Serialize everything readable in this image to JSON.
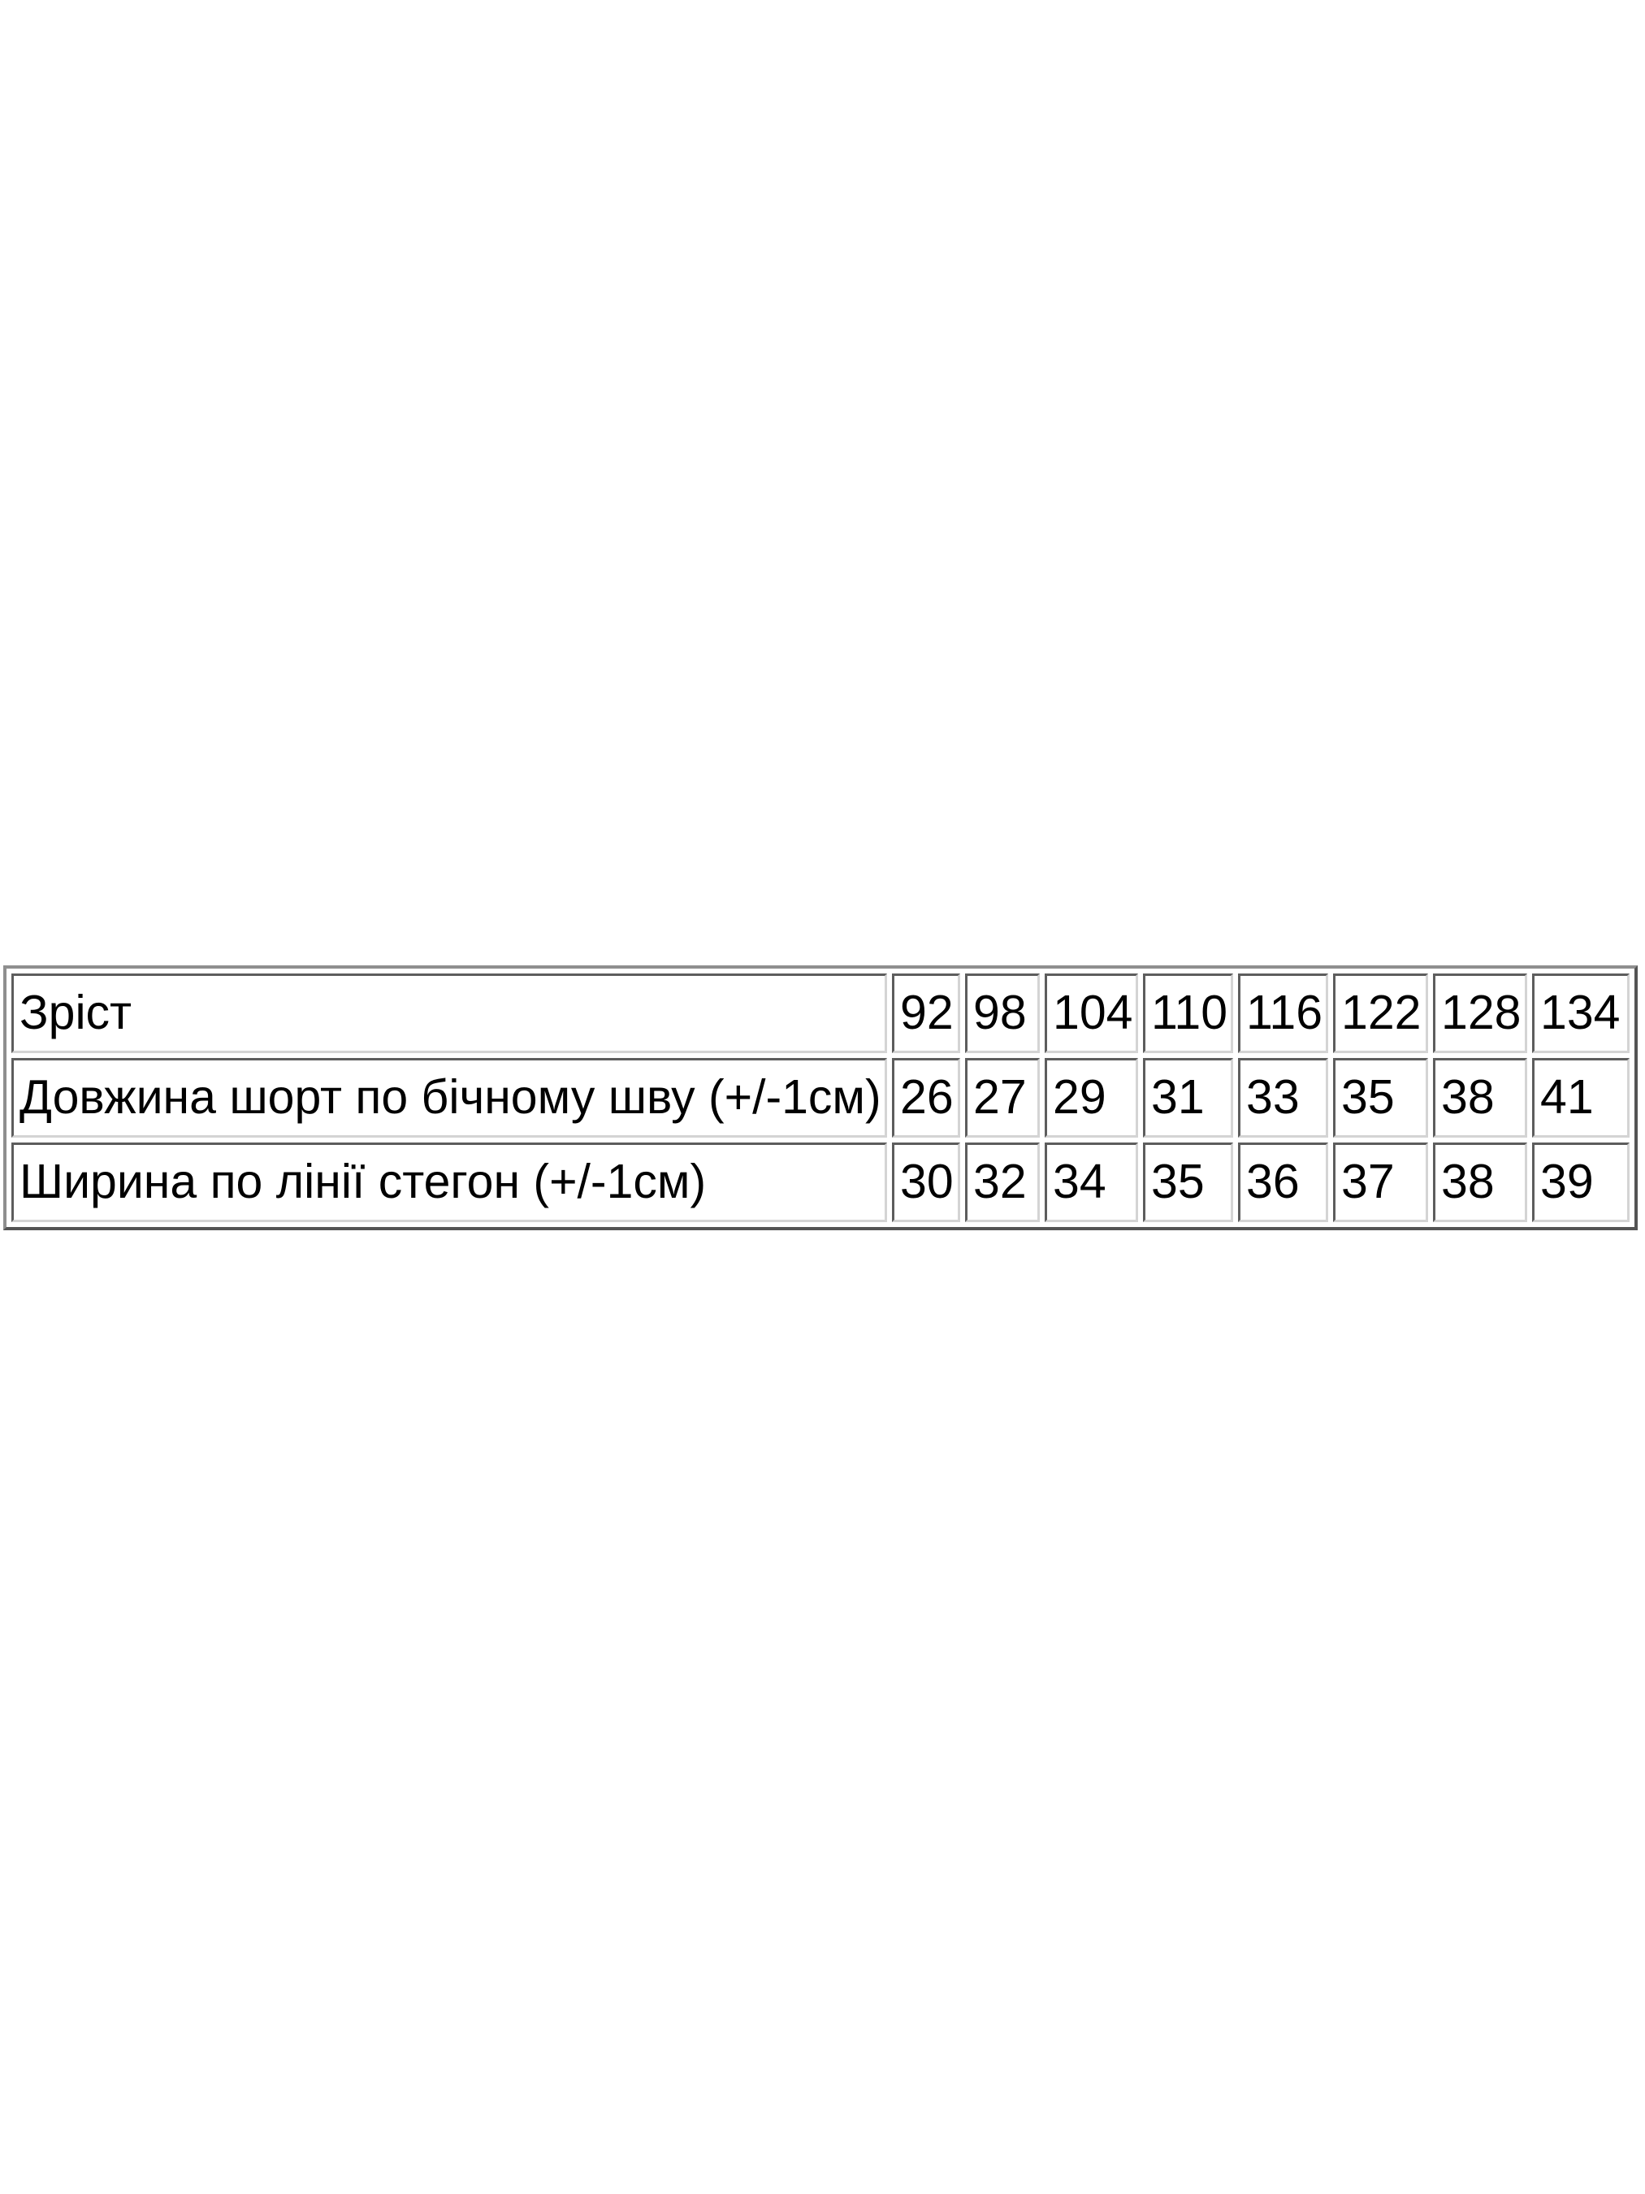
{
  "page": {
    "background": "#ffffff"
  },
  "size_chart": {
    "colors": {
      "text": "#000000",
      "cell_border_dark": "#5d5d5d",
      "cell_border_light": "#d4d4d4",
      "outer_border_light": "#8f8f8f",
      "outer_border_dark": "#545454",
      "cell_background": "#ffffff"
    },
    "rows": [
      {
        "label": "Зріст",
        "values": [
          "92",
          "98",
          "104",
          "110",
          "116",
          "122",
          "128",
          "134"
        ]
      },
      {
        "label": "Довжина шорт по бічному шву (+/-1см)",
        "values": [
          "26",
          "27",
          "29",
          "31",
          "33",
          "35",
          "38",
          "41"
        ]
      },
      {
        "label": "Ширина по лінії стегон (+/-1см)",
        "values": [
          "30",
          "32",
          "34",
          "35",
          "36",
          "37",
          "38",
          "39"
        ]
      }
    ]
  }
}
